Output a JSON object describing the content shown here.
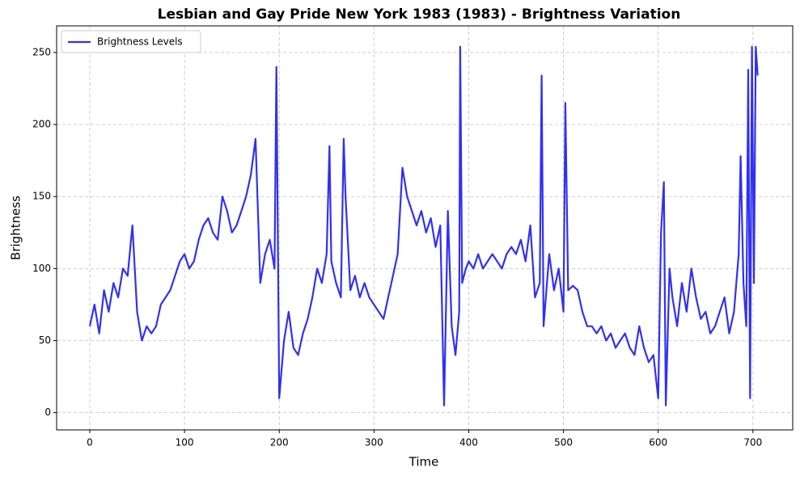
{
  "chart_data": {
    "type": "line",
    "title": "Lesbian and Gay Pride New York 1983 (1983) - Brightness Variation",
    "x_label": "Time",
    "y_label": "Brightness",
    "x": [
      0,
      5,
      10,
      15,
      20,
      25,
      30,
      35,
      40,
      45,
      50,
      55,
      60,
      65,
      70,
      75,
      80,
      85,
      90,
      95,
      100,
      105,
      110,
      115,
      120,
      125,
      130,
      135,
      140,
      145,
      150,
      155,
      160,
      165,
      170,
      175,
      180,
      185,
      190,
      195,
      197,
      200,
      205,
      210,
      215,
      220,
      225,
      230,
      235,
      240,
      245,
      250,
      253,
      255,
      260,
      265,
      268,
      270,
      275,
      280,
      285,
      290,
      295,
      300,
      305,
      310,
      315,
      320,
      325,
      330,
      335,
      340,
      345,
      350,
      355,
      360,
      365,
      370,
      374,
      378,
      382,
      386,
      390,
      391,
      393,
      397,
      400,
      405,
      410,
      415,
      420,
      425,
      430,
      435,
      440,
      445,
      450,
      455,
      460,
      465,
      470,
      475,
      477,
      479,
      485,
      490,
      495,
      500,
      502,
      505,
      510,
      515,
      520,
      525,
      530,
      535,
      540,
      545,
      550,
      555,
      560,
      565,
      570,
      575,
      580,
      585,
      590,
      595,
      600,
      603,
      606,
      608,
      612,
      615,
      620,
      625,
      630,
      635,
      640,
      645,
      650,
      655,
      660,
      665,
      670,
      675,
      680,
      685,
      687,
      690,
      693,
      695,
      697,
      699,
      701,
      703,
      705
    ],
    "series": [
      {
        "name": "Brightness Levels",
        "color": "#3030f5",
        "values": [
          60,
          75,
          55,
          85,
          70,
          90,
          80,
          100,
          95,
          130,
          70,
          50,
          60,
          55,
          60,
          75,
          80,
          85,
          95,
          105,
          110,
          100,
          105,
          120,
          130,
          135,
          125,
          120,
          150,
          140,
          125,
          130,
          140,
          150,
          165,
          190,
          90,
          110,
          120,
          100,
          240,
          10,
          50,
          70,
          45,
          40,
          55,
          65,
          80,
          100,
          90,
          110,
          185,
          105,
          90,
          80,
          190,
          150,
          85,
          95,
          80,
          90,
          80,
          75,
          70,
          65,
          80,
          95,
          110,
          170,
          150,
          140,
          130,
          140,
          125,
          135,
          115,
          130,
          5,
          140,
          60,
          40,
          70,
          254,
          90,
          100,
          105,
          100,
          110,
          100,
          105,
          110,
          105,
          100,
          110,
          115,
          110,
          120,
          105,
          130,
          80,
          90,
          234,
          60,
          110,
          85,
          100,
          70,
          215,
          85,
          88,
          85,
          70,
          60,
          60,
          55,
          60,
          50,
          55,
          45,
          50,
          55,
          45,
          40,
          60,
          45,
          35,
          40,
          10,
          125,
          160,
          5,
          100,
          80,
          60,
          90,
          70,
          100,
          80,
          65,
          70,
          55,
          60,
          70,
          80,
          55,
          70,
          110,
          178,
          90,
          60,
          238,
          10,
          254,
          90,
          254,
          234
        ]
      }
    ],
    "xlim": [
      -35,
      742
    ],
    "ylim": [
      -12,
      268.5
    ],
    "xticks": [
      0,
      100,
      200,
      300,
      400,
      500,
      600,
      700
    ],
    "yticks": [
      0,
      50,
      100,
      150,
      200,
      250
    ],
    "grid": true,
    "legend": "upper left"
  }
}
